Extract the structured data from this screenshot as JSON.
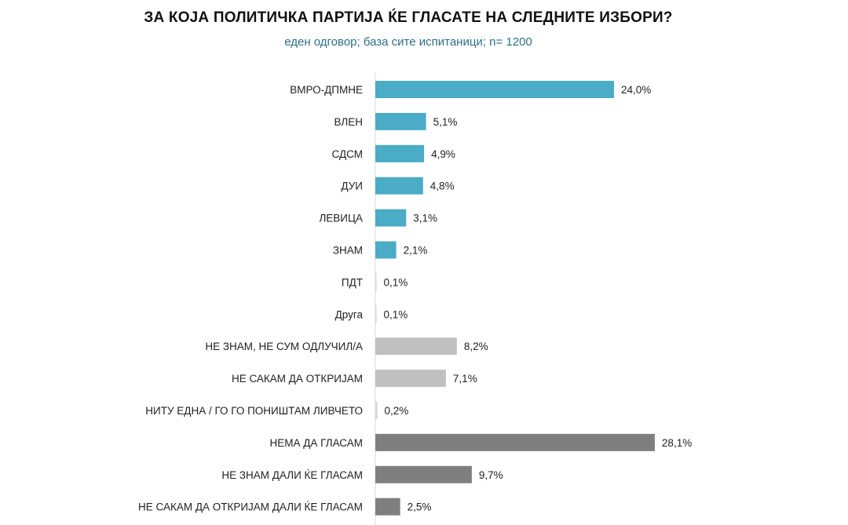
{
  "chart_data": {
    "type": "bar",
    "orientation": "horizontal",
    "title": "ЗА КОЈА ПОЛИТИЧКА ПАРТИЈА ЌЕ ГЛАСАТЕ НА СЛЕДНИТЕ ИЗБОРИ?",
    "subtitle": "еден одговор; база сите испитаници; n= 1200",
    "xlabel": "",
    "ylabel": "",
    "xlim": [
      0,
      30
    ],
    "grid": false,
    "legend": "none",
    "categories": [
      "ВМРО-ДПМНЕ",
      "ВЛЕН",
      "СДСМ",
      "ДУИ",
      "ЛЕВИЦА",
      "ЗНАМ",
      "ПДТ",
      "Друга",
      "НЕ ЗНАМ, НЕ СУМ ОДЛУЧИЛ/А",
      "НЕ САКАМ ДА ОТКРИЈАМ",
      "НИТУ ЕДНА / ГО ГО ПОНИШТАМ ЛИВЧЕТО",
      "НЕМА ДА ГЛАСАМ",
      "НЕ ЗНАМ ДАЛИ ЌЕ ГЛАСАМ",
      "НЕ САКАМ ДА ОТКРИЈАМ ДАЛИ ЌЕ ГЛАСАМ"
    ],
    "values": [
      24.0,
      5.1,
      4.9,
      4.8,
      3.1,
      2.1,
      0.1,
      0.1,
      8.2,
      7.1,
      0.2,
      28.1,
      9.7,
      2.5
    ],
    "value_labels": [
      "24,0%",
      "5,1%",
      "4,9%",
      "4,8%",
      "3,1%",
      "2,1%",
      "0,1%",
      "0,1%",
      "8,2%",
      "7,1%",
      "0,2%",
      "28,1%",
      "9,7%",
      "2,5%"
    ],
    "bar_colors": [
      "#4aacc6",
      "#4aacc6",
      "#4aacc6",
      "#4aacc6",
      "#4aacc6",
      "#4aacc6",
      "#4aacc6",
      "#4aacc6",
      "#c0c0c0",
      "#c0c0c0",
      "#c0c0c0",
      "#7f7f7f",
      "#7f7f7f",
      "#7f7f7f"
    ],
    "axis_color": "#d9d9d9"
  }
}
